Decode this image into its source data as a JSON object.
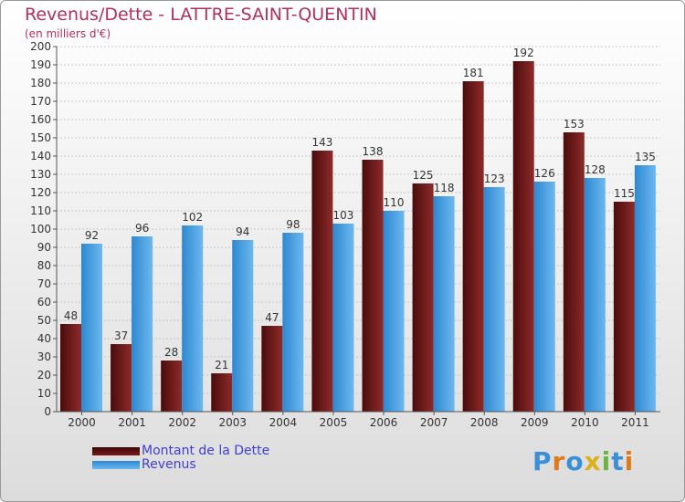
{
  "chart_data": {
    "type": "bar",
    "title": "Revenus/Dette - LATTRE-SAINT-QUENTIN",
    "subtitle": "(en milliers d'€)",
    "xlabel": "",
    "ylabel": "",
    "ylim": [
      0,
      200
    ],
    "yticks": [
      0,
      10,
      20,
      30,
      40,
      50,
      60,
      70,
      80,
      90,
      100,
      110,
      120,
      130,
      140,
      150,
      160,
      170,
      180,
      190,
      200
    ],
    "grid": true,
    "legend_position": "bottom-left",
    "categories": [
      "2000",
      "2001",
      "2002",
      "2003",
      "2004",
      "2005",
      "2006",
      "2007",
      "2008",
      "2009",
      "2010",
      "2011"
    ],
    "series": [
      {
        "name": "Montant de la Dette",
        "color": "#7a1a1a",
        "values": [
          48,
          37,
          28,
          21,
          47,
          143,
          138,
          125,
          181,
          192,
          153,
          115
        ]
      },
      {
        "name": "Revenus",
        "color": "#4fa7e6",
        "values": [
          92,
          96,
          102,
          94,
          98,
          103,
          110,
          118,
          123,
          126,
          128,
          135
        ]
      }
    ]
  },
  "logo": {
    "letters": [
      "P",
      "r",
      "o",
      "x",
      "i",
      "t",
      "i"
    ],
    "colors": [
      "#3a8fd8",
      "#e07b1a",
      "#3a8fd8",
      "#d8b21a",
      "#6cb33f",
      "#3a8fd8",
      "#e07b1a"
    ]
  }
}
